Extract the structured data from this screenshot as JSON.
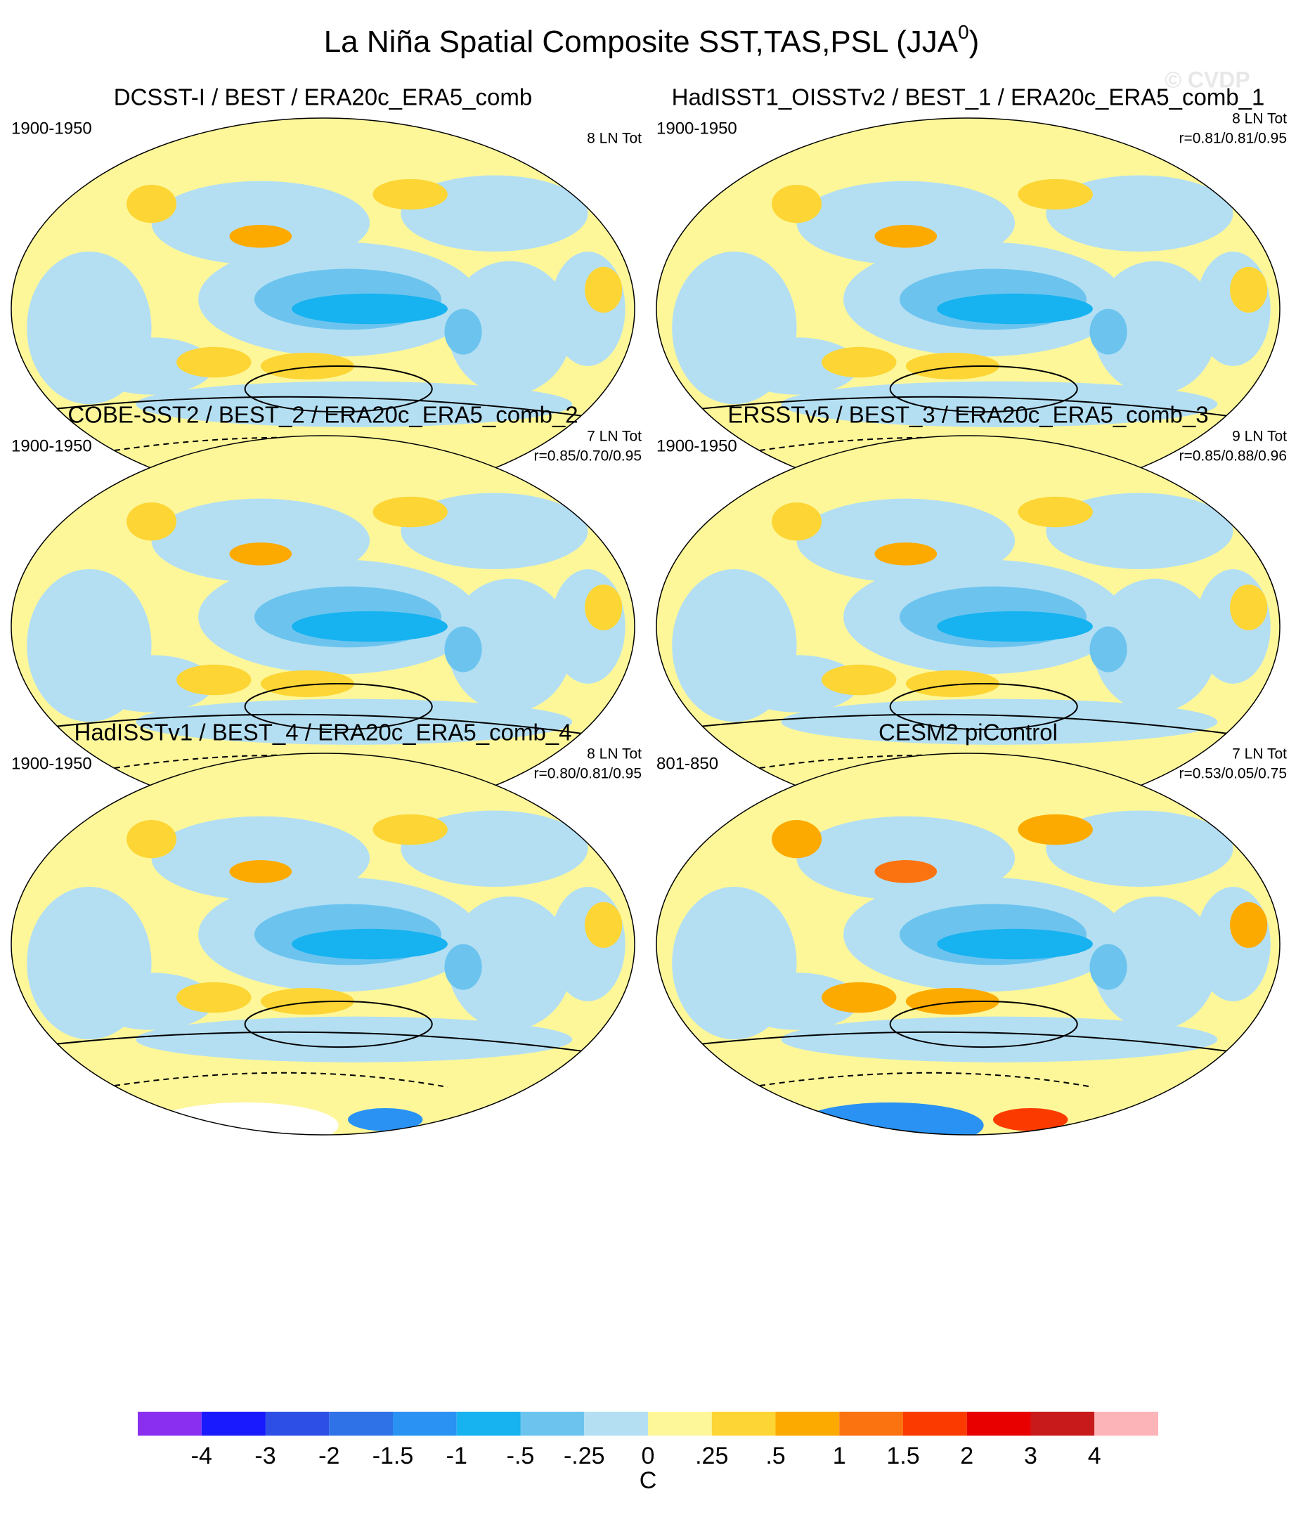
{
  "header": {
    "title": "La Niña Spatial Composite SST,TAS,PSL (JJA",
    "title_sup": "0",
    "title_end": ")",
    "watermark": "© CVDP"
  },
  "panels": [
    {
      "title": "DCSST-I / BEST / ERA20c_ERA5_comb",
      "period": "1900-1950",
      "count": "8 LN Tot"
    },
    {
      "title": "HadISST1_OISSTv2 / BEST_1 / ERA20c_ERA5_comb_1",
      "period": "1900-1950",
      "count": "8 LN Tot",
      "stats": "r=0.81/0.81/0.95"
    },
    {
      "title": "COBE-SST2 / BEST_2 / ERA20c_ERA5_comb_2",
      "period": "1900-1950",
      "count": "7 LN Tot",
      "stats": "r=0.85/0.70/0.95"
    },
    {
      "title": "ERSSTv5 / BEST_3 / ERA20c_ERA5_comb_3",
      "period": "1900-1950",
      "count": "9 LN Tot",
      "stats": "r=0.85/0.88/0.96"
    },
    {
      "title": "HadISSTv1 / BEST_4 / ERA20c_ERA5_comb_4",
      "period": "1900-1950",
      "count": "8 LN Tot",
      "stats": "r=0.80/0.81/0.95"
    },
    {
      "title": "CESM2 piControl",
      "period": "801-850",
      "count": "7 LN Tot",
      "stats": "r=0.53/0.05/0.75"
    }
  ],
  "colorbar": {
    "colors": [
      "#8a2ff0",
      "#1a1aff",
      "#2e4fe6",
      "#2f72e8",
      "#2a92f2",
      "#17b2f0",
      "#6cc4ee",
      "#b4dff3",
      "#fdf79a",
      "#fdd535",
      "#fcaa00",
      "#fb7310",
      "#fb3a00",
      "#e80000",
      "#c81a1a",
      "#fcb4b8"
    ],
    "labels": [
      "-4",
      "-3",
      "-2",
      "-1.5",
      "-1",
      "-.5",
      "-.25",
      "0",
      ".25",
      ".5",
      "1",
      "1.5",
      "2",
      "3",
      "4"
    ],
    "unit": "C"
  }
}
